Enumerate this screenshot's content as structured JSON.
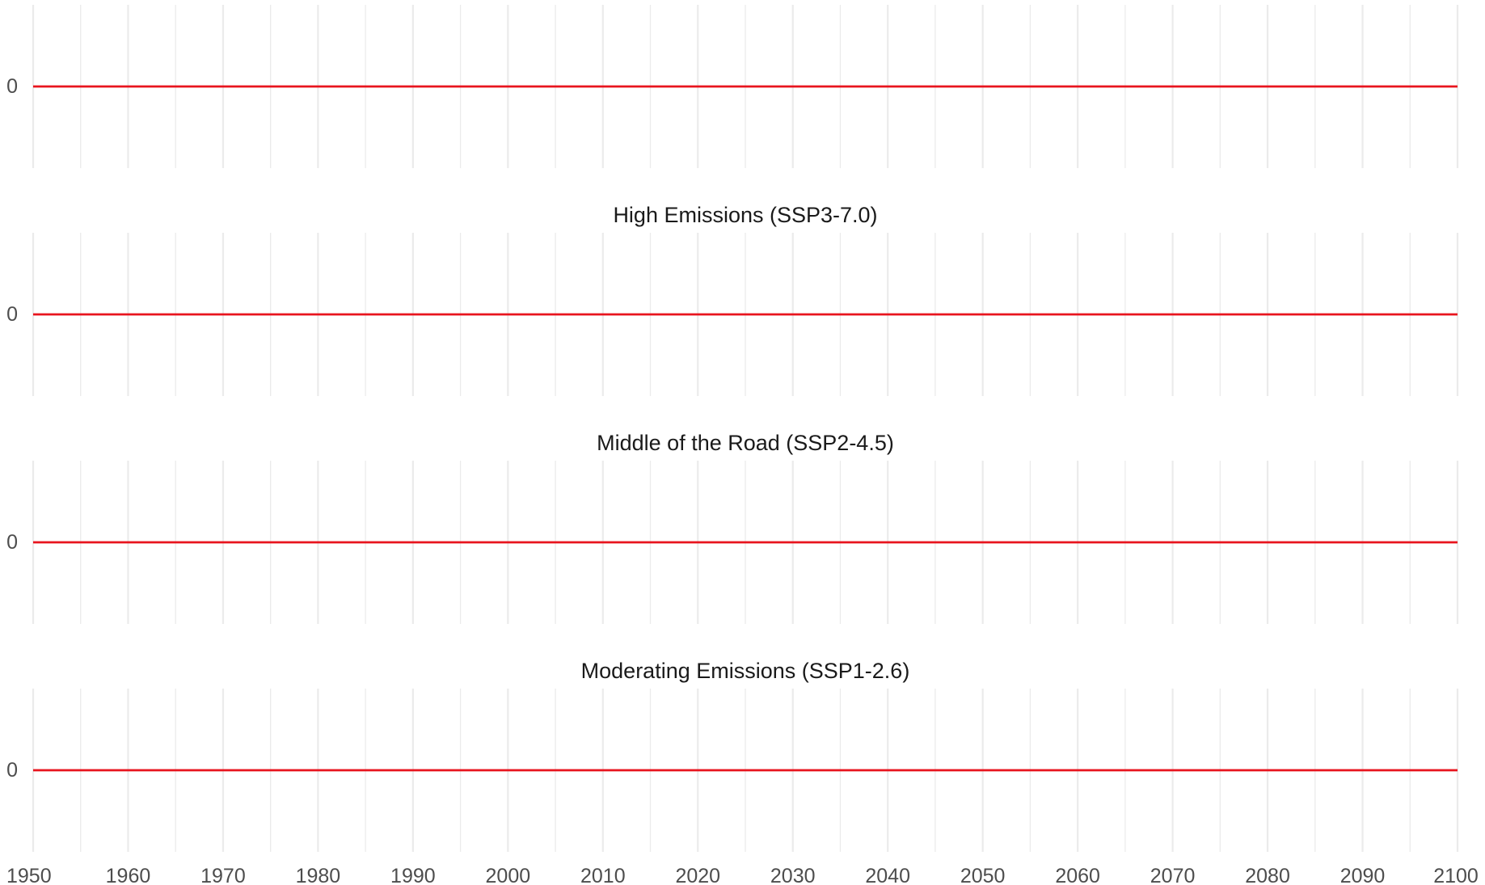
{
  "chart_data": {
    "type": "line",
    "x": [
      1950,
      2100
    ],
    "xlim": [
      1950,
      2100
    ],
    "x_ticks": [
      "1950",
      "1960",
      "1970",
      "1980",
      "1990",
      "2000",
      "2010",
      "2020",
      "2030",
      "2040",
      "2050",
      "2060",
      "2070",
      "2080",
      "2090",
      "2100"
    ],
    "minor_x_step": 5,
    "grid": "vertical",
    "line_color": "#e8141e",
    "grid_color": "#ebebeb",
    "panels": [
      {
        "title": "",
        "y_ticks": [
          "0"
        ],
        "series": [
          {
            "x": [
              1950,
              2100
            ],
            "y": [
              0,
              0
            ]
          }
        ]
      },
      {
        "title": "High Emissions (SSP3-7.0)",
        "y_ticks": [
          "0"
        ],
        "series": [
          {
            "x": [
              1950,
              2100
            ],
            "y": [
              0,
              0
            ]
          }
        ]
      },
      {
        "title": "Middle of the Road (SSP2-4.5)",
        "y_ticks": [
          "0"
        ],
        "series": [
          {
            "x": [
              1950,
              2100
            ],
            "y": [
              0,
              0
            ]
          }
        ]
      },
      {
        "title": "Moderating Emissions (SSP1-2.6)",
        "y_ticks": [
          "0"
        ],
        "series": [
          {
            "x": [
              1950,
              2100
            ],
            "y": [
              0,
              0
            ]
          }
        ]
      }
    ]
  }
}
